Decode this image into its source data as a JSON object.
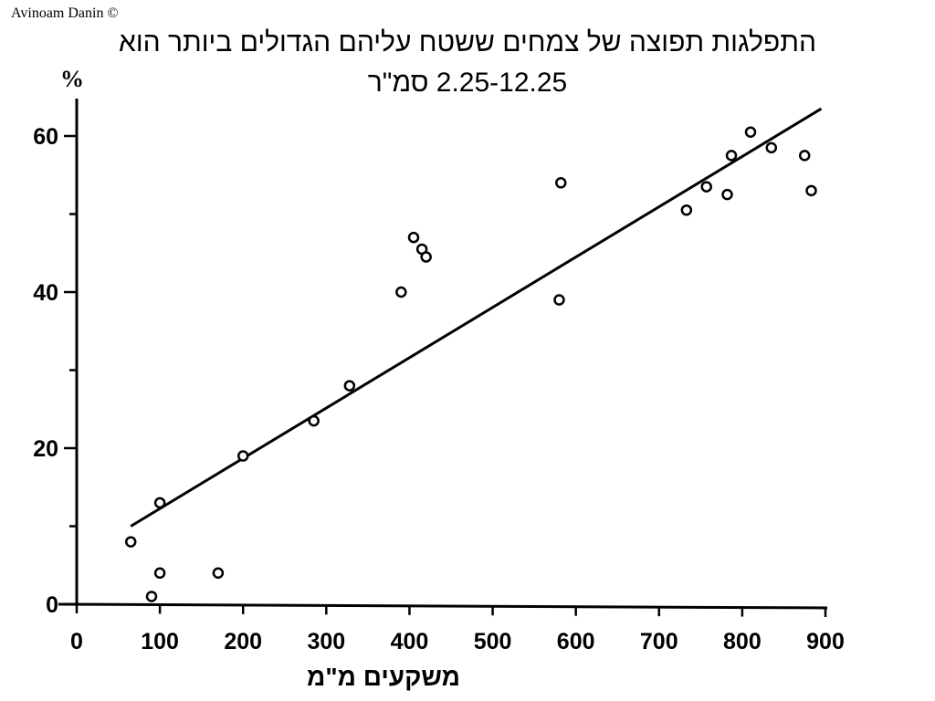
{
  "credit": "Avinoam Danin ©",
  "title_line1": "התפלגות תפוצה של צמחים ששטח עליהם הגדולים ביותר הוא",
  "title_line2": "2.25-12.25 סמ\"ר",
  "chart_data": {
    "type": "scatter",
    "title": "התפלגות תפוצה של צמחים ששטח עליהם הגדולים ביותר הוא 2.25-12.25 סמ\"ר",
    "xlabel": "משקעים מ\"מ",
    "ylabel": "%",
    "xlim": [
      0,
      900
    ],
    "ylim": [
      0,
      60
    ],
    "x_ticks": [
      "0",
      "100",
      "200",
      "300",
      "400",
      "500",
      "600",
      "700",
      "800",
      "900"
    ],
    "y_ticks": [
      "0",
      "20",
      "40",
      "60"
    ],
    "grid": false,
    "points": [
      {
        "x": 65,
        "y": 8
      },
      {
        "x": 90,
        "y": 1
      },
      {
        "x": 100,
        "y": 4
      },
      {
        "x": 100,
        "y": 13
      },
      {
        "x": 170,
        "y": 4
      },
      {
        "x": 200,
        "y": 19
      },
      {
        "x": 285,
        "y": 23.5
      },
      {
        "x": 328,
        "y": 28
      },
      {
        "x": 390,
        "y": 40
      },
      {
        "x": 405,
        "y": 47
      },
      {
        "x": 415,
        "y": 45.5
      },
      {
        "x": 420,
        "y": 44.5
      },
      {
        "x": 580,
        "y": 39
      },
      {
        "x": 582,
        "y": 54
      },
      {
        "x": 733,
        "y": 50.5
      },
      {
        "x": 757,
        "y": 53.5
      },
      {
        "x": 782,
        "y": 52.5
      },
      {
        "x": 787,
        "y": 57.5
      },
      {
        "x": 810,
        "y": 60.5
      },
      {
        "x": 835,
        "y": 58.5
      },
      {
        "x": 875,
        "y": 57.5
      },
      {
        "x": 883,
        "y": 53
      }
    ],
    "trend_line": {
      "x": [
        65,
        895
      ],
      "y": [
        10,
        63.5
      ]
    }
  }
}
